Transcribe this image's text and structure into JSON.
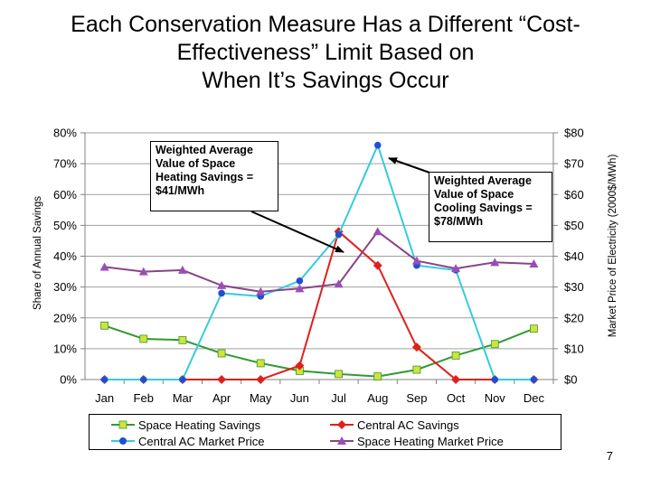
{
  "title": {
    "line1": "Each Conservation Measure Has a Different “Cost-",
    "line2": "Effectiveness” Limit Based on",
    "line3": "When It’s Savings Occur"
  },
  "page_number": "7",
  "callouts": {
    "heating": [
      "Weighted Average",
      "Value of Space",
      "Heating Savings =",
      "$41/MWh"
    ],
    "cooling": [
      "Weighted Average",
      "Value of Space",
      "Cooling Savings =",
      "$78/MWh"
    ]
  },
  "colors": {
    "space_heating_savings": "#339933",
    "central_ac_savings": "#e0201a",
    "central_ac_market_price": "#33ccdd",
    "space_heating_market_price": "#884488",
    "axis": "#808080",
    "grid": "#a0a0a0"
  },
  "chart_data": {
    "type": "line",
    "categories": [
      "Jan",
      "Feb",
      "Mar",
      "Apr",
      "May",
      "Jun",
      "Jul",
      "Aug",
      "Sep",
      "Oct",
      "Nov",
      "Dec"
    ],
    "ylabel": "Share of Annual Savings",
    "y2label": "Market Price of Electricity (2000$/MWh)",
    "ylim": [
      0,
      80
    ],
    "y2lim": [
      0,
      80
    ],
    "y_ticks": [
      "0%",
      "10%",
      "20%",
      "30%",
      "40%",
      "50%",
      "60%",
      "70%",
      "80%"
    ],
    "y2_ticks": [
      "$0",
      "$10",
      "$20",
      "$30",
      "$40",
      "$50",
      "$60",
      "$70",
      "$80"
    ],
    "grid": true,
    "legend_position": "bottom",
    "series": [
      {
        "name": "Space Heating Savings",
        "axis": "left",
        "marker": "square",
        "values": [
          17.5,
          13.2,
          12.8,
          8.5,
          5.3,
          2.8,
          1.8,
          1.0,
          3.2,
          7.8,
          11.5,
          16.5
        ]
      },
      {
        "name": "Central AC Savings",
        "axis": "left",
        "marker": "diamond",
        "values": [
          0,
          0,
          0,
          0,
          0,
          4.5,
          48.0,
          37.0,
          10.5,
          0,
          0,
          0
        ]
      },
      {
        "name": "Central AC Market Price",
        "axis": "right",
        "marker": "circle",
        "values": [
          0,
          0,
          0,
          28.0,
          27.0,
          32.0,
          47.0,
          76.0,
          37.0,
          35.5,
          0,
          0
        ]
      },
      {
        "name": "Space Heating Market Price",
        "axis": "right",
        "marker": "triangle",
        "values": [
          36.5,
          35.0,
          35.5,
          30.5,
          28.5,
          29.5,
          31.0,
          48.0,
          38.5,
          36.0,
          38.0,
          37.5
        ]
      }
    ]
  }
}
